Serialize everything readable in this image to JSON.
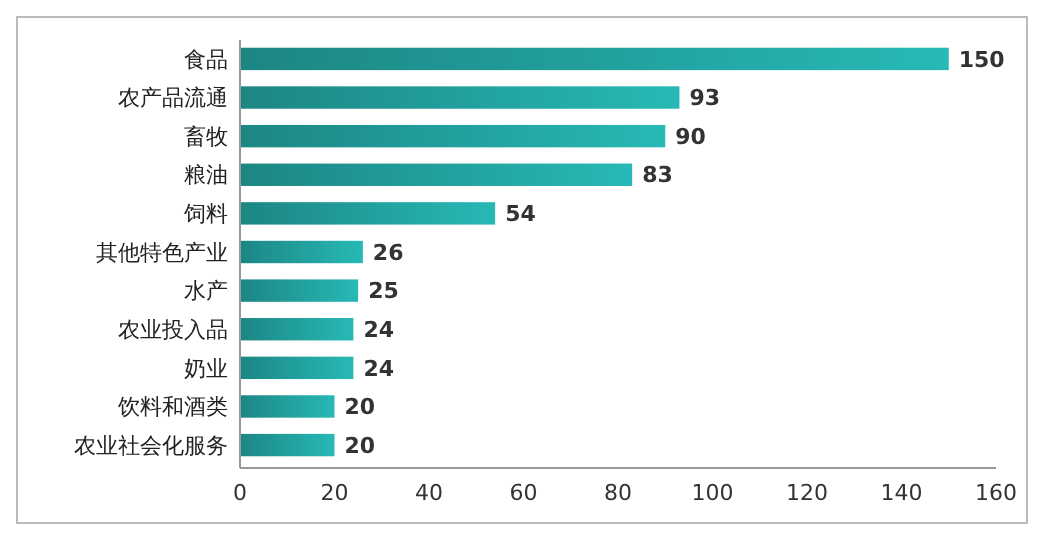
{
  "chart_data": {
    "type": "bar",
    "orientation": "horizontal",
    "categories": [
      "食品",
      "农产品流通",
      "畜牧",
      "粮油",
      "饲料",
      "其他特色产业",
      "水产",
      "农业投入品",
      "奶业",
      "饮料和酒类",
      "农业社会化服务"
    ],
    "values": [
      150,
      93,
      90,
      83,
      54,
      26,
      25,
      24,
      24,
      20,
      20
    ],
    "color": "#27b9b6",
    "xlim": [
      0,
      160
    ],
    "xticks": [
      0,
      20,
      40,
      60,
      80,
      100,
      120,
      140,
      160
    ],
    "data_labels": true,
    "grid": false
  }
}
